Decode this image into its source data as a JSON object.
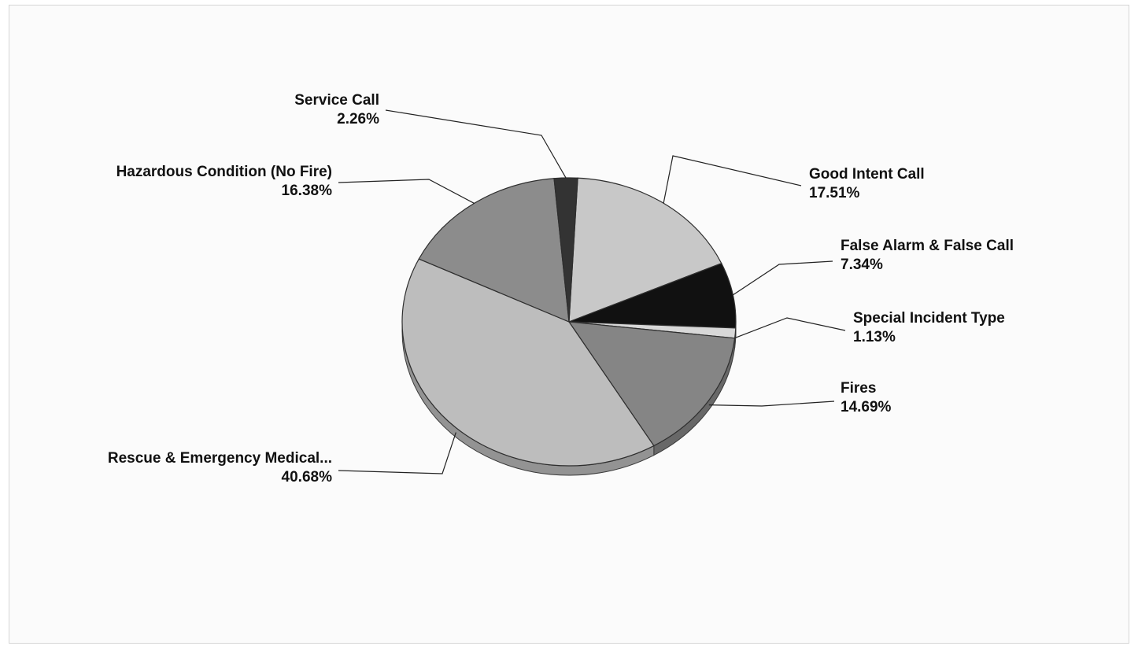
{
  "chart_data": {
    "type": "pie",
    "title": "",
    "legend": "none",
    "slices": [
      {
        "name": "Good Intent Call",
        "value": 17.51,
        "label": "17.51%",
        "color": "#c8c8c8"
      },
      {
        "name": "False Alarm & False Call",
        "value": 7.34,
        "label": "7.34%",
        "color": "#111111"
      },
      {
        "name": "Special Incident Type",
        "value": 1.13,
        "label": "1.13%",
        "color": "#d8d8d8"
      },
      {
        "name": "Fires",
        "value": 14.69,
        "label": "14.69%",
        "color": "#858585"
      },
      {
        "name": "Rescue & Emergency Medical...",
        "value": 40.68,
        "label": "40.68%",
        "color": "#bdbdbd"
      },
      {
        "name": "Hazardous Condition (No Fire)",
        "value": 16.38,
        "label": "16.38%",
        "color": "#8c8c8c"
      },
      {
        "name": "Service Call",
        "value": 2.26,
        "label": "2.26%",
        "color": "#333333"
      }
    ]
  }
}
